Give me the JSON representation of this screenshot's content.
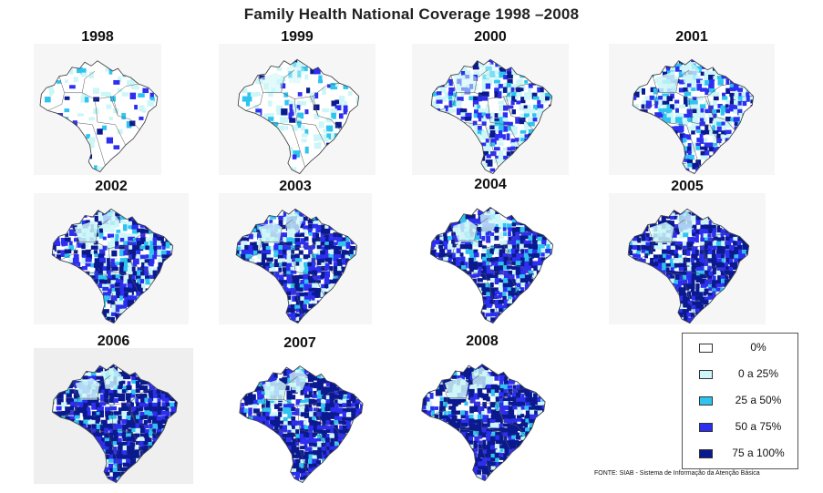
{
  "title": "Family Health National Coverage 1998 –2008",
  "colors": {
    "c0": "#ffffff",
    "c25": "#ccf6f7",
    "c50": "#2ec4ef",
    "c75": "#2d2ef0",
    "c100": "#0a1a8e"
  },
  "years": [
    {
      "label": "1998",
      "mix": [
        0.86,
        0.07,
        0.03,
        0.03,
        0.01
      ]
    },
    {
      "label": "1999",
      "mix": [
        0.72,
        0.14,
        0.06,
        0.06,
        0.02
      ]
    },
    {
      "label": "2000",
      "mix": [
        0.42,
        0.23,
        0.1,
        0.17,
        0.08
      ]
    },
    {
      "label": "2001",
      "mix": [
        0.3,
        0.23,
        0.1,
        0.22,
        0.15
      ]
    },
    {
      "label": "2002",
      "mix": [
        0.16,
        0.18,
        0.09,
        0.27,
        0.3
      ]
    },
    {
      "label": "2003",
      "mix": [
        0.11,
        0.16,
        0.09,
        0.28,
        0.36
      ]
    },
    {
      "label": "2004",
      "mix": [
        0.08,
        0.11,
        0.08,
        0.3,
        0.43
      ]
    },
    {
      "label": "2005",
      "mix": [
        0.04,
        0.07,
        0.08,
        0.3,
        0.51
      ]
    },
    {
      "label": "2006",
      "mix": [
        0.02,
        0.05,
        0.07,
        0.3,
        0.56
      ]
    },
    {
      "label": "2007",
      "mix": [
        0.02,
        0.09,
        0.07,
        0.28,
        0.54
      ]
    },
    {
      "label": "2008",
      "mix": [
        0.02,
        0.06,
        0.07,
        0.28,
        0.57
      ]
    }
  ],
  "legend": [
    {
      "label": "0%",
      "color": "#ffffff"
    },
    {
      "label": "0 a 25%",
      "color": "#ccf6f7"
    },
    {
      "label": "25 a 50%",
      "color": "#2ec4ef"
    },
    {
      "label": "50 a 75%",
      "color": "#2d2ef0"
    },
    {
      "label": "75 a 100%",
      "color": "#0a1a8e"
    }
  ],
  "source": "FONTE: SIAB - Sistema de Informação da Atenção Básica"
}
